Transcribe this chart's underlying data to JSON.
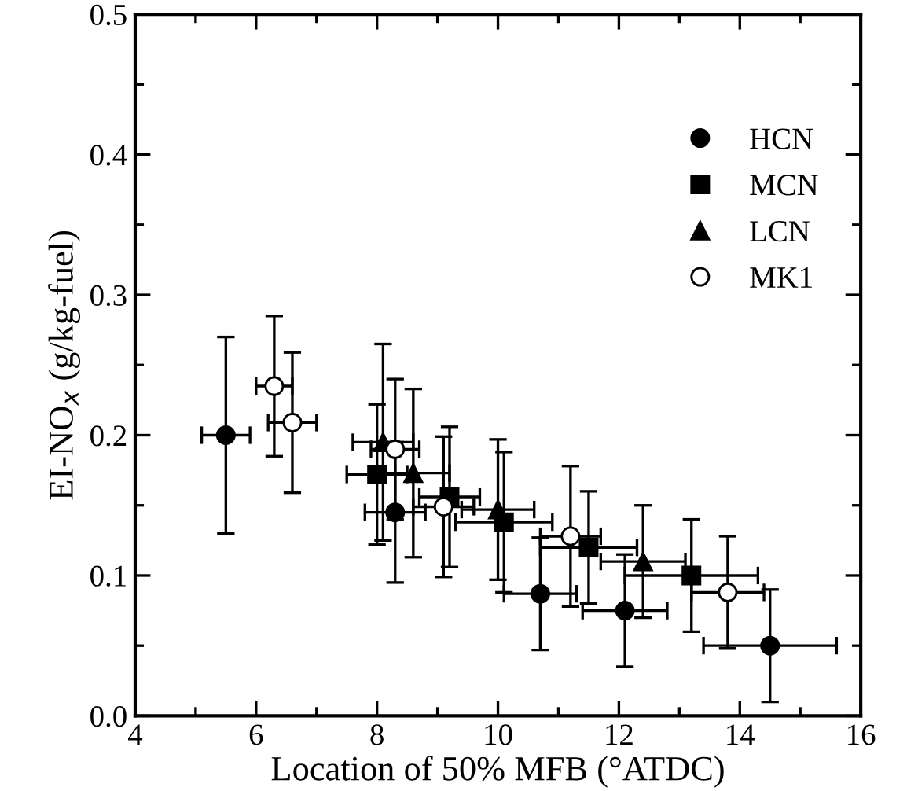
{
  "chart_data": {
    "type": "scatter",
    "xlabel": "Location of 50% MFB (°ATDC)",
    "ylabel": "EI-NO$_{x}$ (g/kg-fuel)",
    "xlim": [
      4,
      16
    ],
    "ylim": [
      0,
      0.5
    ],
    "xticks": [
      4,
      {
        "value": 5,
        "label": null
      },
      6,
      {
        "value": 7,
        "label": null
      },
      8,
      {
        "value": 9,
        "label": null
      },
      10,
      {
        "value": 11,
        "label": null
      },
      12,
      {
        "value": 13,
        "label": null
      },
      14,
      {
        "value": 15,
        "label": null
      },
      16
    ],
    "yticks": [
      {
        "value": 0,
        "label": "0.0"
      },
      {
        "value": 0.05,
        "label": null
      },
      0.1,
      {
        "value": 0.15,
        "label": null
      },
      0.2,
      {
        "value": 0.25,
        "label": null
      },
      0.3,
      {
        "value": 0.35,
        "label": null
      },
      0.4,
      {
        "value": 0.45,
        "label": null
      },
      0.5
    ],
    "legend": "right",
    "grid": false,
    "series": [
      {
        "name": "HCN",
        "color": "#000000",
        "marker": "circle",
        "x": [
          5.5,
          8.3,
          10.7,
          12.1,
          14.5
        ],
        "values": [
          0.2,
          0.145,
          0.087,
          0.075,
          0.05
        ],
        "errors": [
          0.07,
          0.05,
          0.04,
          0.04,
          0.04
        ],
        "xerrors": [
          0.4,
          0.5,
          0.6,
          0.7,
          1.1
        ]
      },
      {
        "name": "MCN",
        "color": "#000000",
        "marker": "square",
        "x": [
          8.0,
          9.2,
          10.1,
          11.5,
          13.2
        ],
        "values": [
          0.172,
          0.156,
          0.138,
          0.12,
          0.1
        ],
        "errors": [
          0.05,
          0.05,
          0.05,
          0.04,
          0.04
        ],
        "xerrors": [
          0.5,
          0.5,
          0.8,
          0.8,
          1.1
        ]
      },
      {
        "name": "LCN",
        "color": "#000000",
        "marker": "triangle",
        "x": [
          8.1,
          8.6,
          10.0,
          12.4
        ],
        "values": [
          0.195,
          0.173,
          0.147,
          0.11
        ],
        "errors": [
          0.07,
          0.06,
          0.05,
          0.04
        ],
        "xerrors": [
          0.5,
          0.6,
          0.6,
          0.7
        ]
      },
      {
        "name": "MK1",
        "color": "#ffffff",
        "marker": "circle",
        "x": [
          6.3,
          6.6,
          8.3,
          9.1,
          11.2,
          13.8
        ],
        "values": [
          0.235,
          0.209,
          0.19,
          0.149,
          0.128,
          0.088
        ],
        "errors": [
          0.05,
          0.05,
          0.05,
          0.05,
          0.05,
          0.04
        ],
        "xerrors": [
          0.3,
          0.4,
          0.4,
          0.5,
          0.5,
          0.6
        ]
      }
    ]
  }
}
